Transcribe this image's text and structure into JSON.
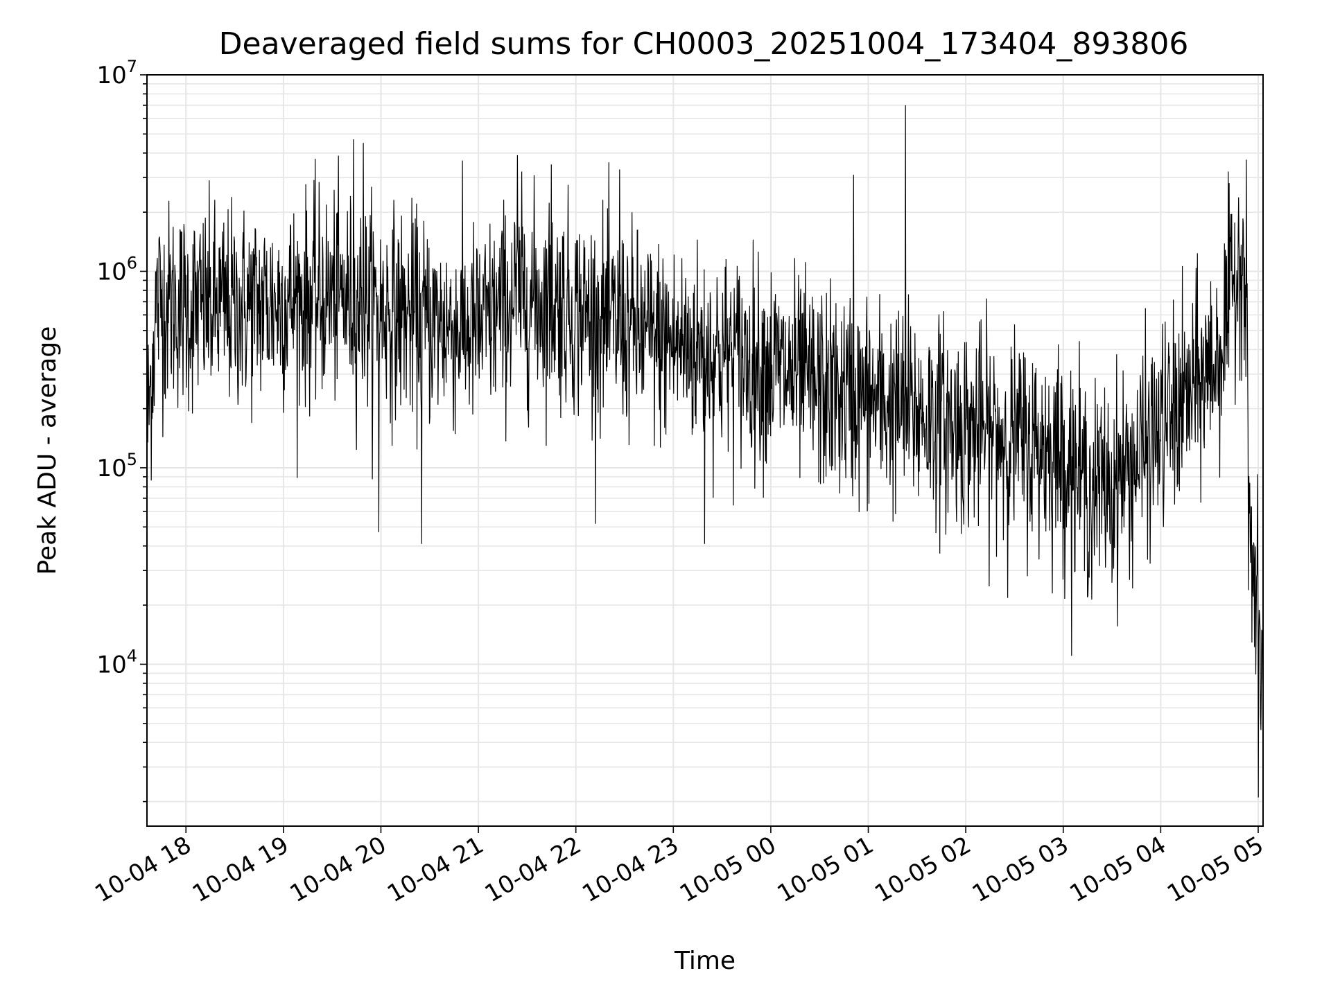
{
  "chart_data": {
    "type": "line",
    "title": "Deaveraged field sums for CH0003_20251004_173404_893806",
    "xlabel": "Time",
    "ylabel": "Peak ADU - average",
    "yscale": "log",
    "ylim": [
      1500,
      10000000
    ],
    "y_ticks": [
      {
        "base": "10",
        "exp": "4",
        "value": 10000
      },
      {
        "base": "10",
        "exp": "5",
        "value": 100000
      },
      {
        "base": "10",
        "exp": "6",
        "value": 1000000
      },
      {
        "base": "10",
        "exp": "7",
        "value": 10000000
      }
    ],
    "xlim_hours": [
      17.6,
      29.05
    ],
    "x_ticks": [
      {
        "label": "10-04 18",
        "hour": 18
      },
      {
        "label": "10-04 19",
        "hour": 19
      },
      {
        "label": "10-04 20",
        "hour": 20
      },
      {
        "label": "10-04 21",
        "hour": 21
      },
      {
        "label": "10-04 22",
        "hour": 22
      },
      {
        "label": "10-04 23",
        "hour": 23
      },
      {
        "label": "10-05 00",
        "hour": 24
      },
      {
        "label": "10-05 01",
        "hour": 25
      },
      {
        "label": "10-05 02",
        "hour": 26
      },
      {
        "label": "10-05 03",
        "hour": 27
      },
      {
        "label": "10-05 04",
        "hour": 28
      },
      {
        "label": "10-05 05",
        "hour": 29
      }
    ],
    "grid": true,
    "series": [
      {
        "name": "field sums",
        "color": "#000000",
        "envelope_hours": [
          17.6,
          17.7,
          18.0,
          18.5,
          19.0,
          19.5,
          20.0,
          20.5,
          21.0,
          21.4,
          21.8,
          22.3,
          22.8,
          23.5,
          24.0,
          24.5,
          25.0,
          25.5,
          26.0,
          26.5,
          27.0,
          27.3,
          27.7,
          28.0,
          28.3,
          28.6,
          28.85,
          28.92,
          29.05
        ],
        "envelope_median": [
          150000,
          700000,
          650000,
          650000,
          700000,
          750000,
          650000,
          550000,
          500000,
          750000,
          700000,
          550000,
          450000,
          380000,
          330000,
          250000,
          220000,
          190000,
          160000,
          140000,
          120000,
          75000,
          100000,
          160000,
          230000,
          380000,
          1500000,
          40000,
          8000
        ],
        "peaks": [
          {
            "hour": 19.72,
            "value": 4700000
          },
          {
            "hour": 19.82,
            "value": 4500000
          },
          {
            "hour": 21.4,
            "value": 3900000
          },
          {
            "hour": 21.75,
            "value": 3500000
          },
          {
            "hour": 22.45,
            "value": 3300000
          },
          {
            "hour": 25.38,
            "value": 7000000
          },
          {
            "hour": 24.85,
            "value": 3100000
          },
          {
            "hour": 28.88,
            "value": 3700000
          }
        ],
        "dips": [
          {
            "hour": 19.98,
            "value": 47000
          },
          {
            "hour": 20.42,
            "value": 41000
          },
          {
            "hour": 23.32,
            "value": 41000
          },
          {
            "hour": 27.0,
            "value": 27000
          },
          {
            "hour": 27.5,
            "value": 26000
          },
          {
            "hour": 29.0,
            "value": 2100
          }
        ]
      }
    ]
  }
}
